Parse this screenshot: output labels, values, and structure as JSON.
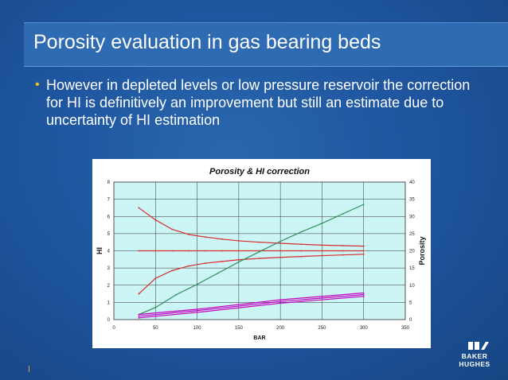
{
  "slide": {
    "title": "Porosity evaluation in gas bearing beds",
    "bullet": "However in depleted levels or low pressure reservoir the correction for HI is definitively an improvement but still an estimate due to uncertainty of HI estimation"
  },
  "logo": {
    "line1": "BAKER",
    "line2": "HUGHES"
  },
  "colors": {
    "background": "#1e56a0",
    "title_bar": "#2f6bb3",
    "bullet_dot": "#f0c419",
    "plot_area": "#ccf5f5",
    "red": "#d92b2b",
    "green": "#2f8f5a",
    "magenta": "#c400c4"
  },
  "chart_data": {
    "type": "line",
    "title": "Porosity & HI correction",
    "xlabel": "BAR",
    "ylabel": "HI",
    "y2label": "Porosity",
    "xlim": [
      0,
      350
    ],
    "ylim": [
      0,
      8
    ],
    "y2lim": [
      0,
      40
    ],
    "xticks": [
      0,
      50,
      100,
      150,
      200,
      250,
      300,
      350
    ],
    "yticks": [
      0,
      1,
      2,
      3,
      4,
      5,
      6,
      7,
      8
    ],
    "y2ticks": [
      0,
      5,
      10,
      15,
      20,
      25,
      30,
      35,
      40
    ],
    "grid": true,
    "series": [
      {
        "axis": "y1",
        "color": "#d92b2b",
        "x": [
          30,
          50,
          70,
          90,
          110,
          130,
          150,
          175,
          200,
          225,
          250,
          275,
          300
        ],
        "y": [
          6.5,
          5.8,
          5.25,
          4.95,
          4.8,
          4.68,
          4.58,
          4.5,
          4.44,
          4.38,
          4.33,
          4.3,
          4.27
        ]
      },
      {
        "axis": "y1",
        "color": "#d92b2b",
        "x": [
          30,
          50,
          70,
          90,
          110,
          130,
          150,
          175,
          200,
          225,
          250,
          275,
          300
        ],
        "y": [
          4.0,
          4.0,
          4.0,
          4.0,
          4.0,
          4.0,
          4.0,
          4.0,
          4.0,
          4.0,
          4.0,
          4.0,
          4.0
        ]
      },
      {
        "axis": "y1",
        "color": "#d92b2b",
        "x": [
          30,
          50,
          70,
          90,
          110,
          130,
          150,
          175,
          200,
          225,
          250,
          275,
          300
        ],
        "y": [
          1.5,
          2.4,
          2.85,
          3.12,
          3.28,
          3.38,
          3.48,
          3.56,
          3.62,
          3.67,
          3.72,
          3.76,
          3.8
        ]
      },
      {
        "axis": "y1",
        "color": "#2f8f5a",
        "x": [
          30,
          50,
          75,
          100,
          125,
          150,
          175,
          200,
          225,
          250,
          275,
          300
        ],
        "y": [
          0.3,
          0.7,
          1.45,
          2.05,
          2.7,
          3.35,
          3.95,
          4.55,
          5.1,
          5.6,
          6.15,
          6.7
        ]
      },
      {
        "axis": "y1",
        "color": "#c400c4",
        "x": [
          30,
          100,
          200,
          300
        ],
        "y": [
          0.3,
          0.6,
          1.15,
          1.55
        ]
      },
      {
        "axis": "y1",
        "color": "#c400c4",
        "x": [
          30,
          100,
          200,
          300
        ],
        "y": [
          0.2,
          0.52,
          1.05,
          1.45
        ]
      },
      {
        "axis": "y1",
        "color": "#c400c4",
        "x": [
          30,
          100,
          200,
          300
        ],
        "y": [
          0.1,
          0.42,
          0.95,
          1.35
        ]
      }
    ]
  }
}
